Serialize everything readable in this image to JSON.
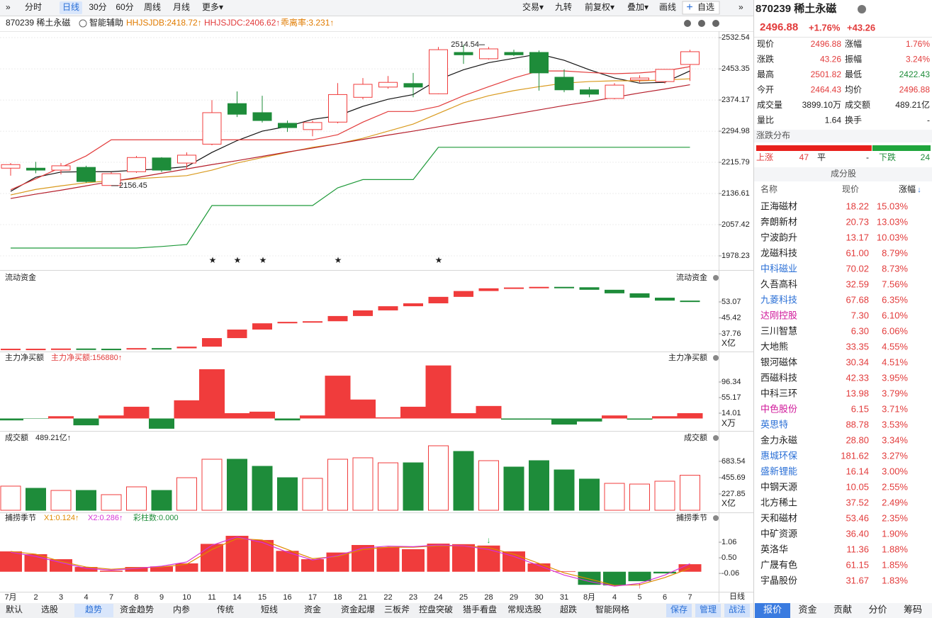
{
  "toolbar": {
    "left": [
      "分时",
      "日线",
      "30分",
      "60分",
      "周线",
      "月线",
      "更多▾"
    ],
    "right": [
      "交易▾",
      "九转",
      "前复权▾",
      "叠加▾",
      "画线",
      "自选"
    ]
  },
  "info": {
    "code_name": "870239 稀土永磁",
    "assist": "智能辅助",
    "jdb": "HHJSJDB:2418.72↑",
    "jdc": "HHJSJDC:2406.62↑",
    "bias": "乖离率:3.231↑"
  },
  "kline": {
    "dates": [
      "7月",
      "2",
      "3",
      "4",
      "7",
      "8",
      "9",
      "10",
      "11",
      "14",
      "15",
      "16",
      "17",
      "18",
      "21",
      "22",
      "23",
      "24",
      "25",
      "28",
      "29",
      "30",
      "31",
      "8月",
      "4",
      "5",
      "6",
      "7"
    ],
    "candles": [
      {
        "o": 2201,
        "h": 2214,
        "l": 2182,
        "c": 2210
      },
      {
        "o": 2201,
        "h": 2217,
        "l": 2188,
        "c": 2196
      },
      {
        "o": 2196,
        "h": 2214,
        "l": 2185,
        "c": 2207
      },
      {
        "o": 2203,
        "h": 2207,
        "l": 2164,
        "c": 2167
      },
      {
        "o": 2157,
        "h": 2191,
        "l": 2156.45,
        "c": 2187
      },
      {
        "o": 2192,
        "h": 2232,
        "l": 2189,
        "c": 2228
      },
      {
        "o": 2227,
        "h": 2229,
        "l": 2191,
        "c": 2196
      },
      {
        "o": 2214,
        "h": 2241,
        "l": 2200,
        "c": 2234
      },
      {
        "o": 2262,
        "h": 2374,
        "l": 2259,
        "c": 2342
      },
      {
        "o": 2365,
        "h": 2396,
        "l": 2331,
        "c": 2338
      },
      {
        "o": 2342,
        "h": 2385,
        "l": 2317,
        "c": 2322
      },
      {
        "o": 2315,
        "h": 2322,
        "l": 2293,
        "c": 2304
      },
      {
        "o": 2299,
        "h": 2322,
        "l": 2282,
        "c": 2317
      },
      {
        "o": 2318,
        "h": 2417,
        "l": 2315,
        "c": 2388
      },
      {
        "o": 2381,
        "h": 2430,
        "l": 2376,
        "c": 2414
      },
      {
        "o": 2407,
        "h": 2435,
        "l": 2403,
        "c": 2419
      },
      {
        "o": 2416,
        "h": 2443,
        "l": 2381,
        "c": 2407
      },
      {
        "o": 2390,
        "h": 2509,
        "l": 2389,
        "c": 2502
      },
      {
        "o": 2495,
        "h": 2514.54,
        "l": 2466,
        "c": 2489
      },
      {
        "o": 2479,
        "h": 2509,
        "l": 2477,
        "c": 2504
      },
      {
        "o": 2495,
        "h": 2502,
        "l": 2486,
        "c": 2489
      },
      {
        "o": 2495,
        "h": 2500,
        "l": 2398,
        "c": 2443
      },
      {
        "o": 2432,
        "h": 2452,
        "l": 2394,
        "c": 2400
      },
      {
        "o": 2400,
        "h": 2407,
        "l": 2381,
        "c": 2389
      },
      {
        "o": 2378,
        "h": 2417,
        "l": 2376,
        "c": 2412
      },
      {
        "o": 2425,
        "h": 2437,
        "l": 2419,
        "c": 2430
      },
      {
        "o": 2421,
        "h": 2453,
        "l": 2416,
        "c": 2452
      },
      {
        "o": 2464.43,
        "h": 2501.82,
        "l": 2422.43,
        "c": 2496.88
      }
    ],
    "lines": [
      {
        "color": "#111111",
        "values": [
          2142,
          2178,
          2191,
          2192,
          2192,
          2196,
          2199,
          2205,
          2241,
          2271,
          2295,
          2307,
          2325,
          2334,
          2358,
          2376,
          2388,
          2426,
          2451,
          2469,
          2480,
          2491,
          2475,
          2451,
          2430,
          2417,
          2419,
          2448
        ]
      },
      {
        "color": "#d99a1e",
        "values": [
          2133,
          2147,
          2156,
          2164,
          2169,
          2174,
          2178,
          2182,
          2196,
          2214,
          2228,
          2241,
          2254,
          2263,
          2277,
          2295,
          2313,
          2340,
          2367,
          2385,
          2398,
          2408,
          2417,
          2421,
          2423,
          2423,
          2425,
          2428
        ]
      },
      {
        "color": "#e23b3b",
        "values": [
          2146,
          2174,
          2203,
          2232,
          2273,
          2273,
          2273,
          2273,
          2273,
          2273,
          2273,
          2273,
          2273,
          2286,
          2318,
          2345,
          2345,
          2358,
          2385,
          2408,
          2430,
          2448,
          2448,
          2444,
          2441,
          2443,
          2448,
          2459
        ]
      },
      {
        "color": "#b51d2a",
        "values": [
          2124,
          2135,
          2145,
          2156,
          2167,
          2177,
          2188,
          2199,
          2210,
          2220,
          2231,
          2242,
          2252,
          2263,
          2274,
          2285,
          2295,
          2306,
          2317,
          2327,
          2338,
          2349,
          2360,
          2370,
          2381,
          2392,
          2402,
          2413
        ]
      },
      {
        "color": "#1f9a3a",
        "values": [
          1998,
          1998,
          1998,
          1998,
          1998,
          1998,
          2002,
          2007,
          2106,
          2106,
          2106,
          2106,
          2106,
          2151,
          2172,
          2172,
          2172,
          2254,
          2254,
          2254,
          2254,
          2254,
          2254,
          2254,
          2254,
          2254,
          2254,
          2254
        ]
      }
    ],
    "ylim": [
      1944,
      2549
    ],
    "yticks": [
      2532.54,
      2453.35,
      2374.17,
      2294.98,
      2215.79,
      2136.61,
      2057.42,
      1978.23
    ]
  },
  "liquid": {
    "title": "流动资金",
    "unit": "X亿",
    "values": [
      30.6,
      30.6,
      30.7,
      30.6,
      30.5,
      30.9,
      30.8,
      31.6,
      35.7,
      39.8,
      42.8,
      43.5,
      43.8,
      46.3,
      49.0,
      51.0,
      52.4,
      55.5,
      58.3,
      59.6,
      60.0,
      60.3,
      60.1,
      58.9,
      57.2,
      55.1,
      53.7,
      53.1
    ],
    "ylim": [
      29.6,
      67.7
    ],
    "yticks": [
      53.07,
      45.42,
      37.76
    ]
  },
  "net": {
    "title": "主力净买额",
    "header": "主力净买额:156880↑",
    "unit": "X万",
    "values": [
      -5,
      -1,
      6,
      -18,
      8,
      31,
      -27,
      48,
      130,
      14,
      18,
      -5,
      8,
      113,
      50,
      3,
      31,
      140,
      14,
      33,
      -3,
      -3,
      -16,
      -8,
      8,
      -3,
      6,
      14
    ],
    "ylim": [
      -30.9,
      174.9
    ],
    "yticks": [
      96.34,
      55.17,
      14.01
    ]
  },
  "turnover": {
    "title": "成交额",
    "header": "489.21亿↑",
    "unit": "X亿",
    "values": [
      337,
      307,
      277,
      277,
      218,
      327,
      277,
      455,
      713,
      713,
      614,
      455,
      446,
      713,
      733,
      663,
      663,
      901,
      822,
      693,
      604,
      693,
      564,
      436,
      376,
      366,
      406,
      489.21
    ],
    "ylim": [
      -20,
      1089
    ],
    "yticks": [
      683.54,
      455.69,
      227.85
    ]
  },
  "season": {
    "title": "捕捞季节",
    "x1_label": "X1:0.124↑",
    "x2_label": "X2:0.286↑",
    "bars_label": "彩柱数:0.000",
    "values": [
      0.73,
      0.63,
      0.45,
      0.17,
      0.04,
      0.17,
      0.19,
      0.3,
      1.0,
      1.29,
      1.14,
      0.75,
      0.45,
      0.69,
      0.96,
      0.88,
      0.81,
      1.01,
      0.99,
      0.94,
      0.73,
      0.3,
      0.02,
      -0.47,
      -0.49,
      -0.34,
      -0.06,
      0.27
    ],
    "x1": [
      0.73,
      0.63,
      0.37,
      0.17,
      0.09,
      0.14,
      0.17,
      0.27,
      0.8,
      1.19,
      1.14,
      0.8,
      0.47,
      0.55,
      0.8,
      0.88,
      0.88,
      0.93,
      0.93,
      0.86,
      0.63,
      0.3,
      -0.04,
      -0.26,
      -0.49,
      -0.47,
      -0.21,
      0.124
    ],
    "x2": [
      0.7,
      0.55,
      0.33,
      0.12,
      0.06,
      0.12,
      0.2,
      0.35,
      0.95,
      1.25,
      1.05,
      0.7,
      0.42,
      0.58,
      0.85,
      0.92,
      0.9,
      0.96,
      0.93,
      0.8,
      0.55,
      0.22,
      -0.12,
      -0.35,
      -0.52,
      -0.42,
      -0.12,
      0.286
    ],
    "x1_color": "#e08a00",
    "x2_color": "#d633d6",
    "ylim": [
      -0.72,
      2.08
    ],
    "yticks": [
      1.06,
      {
        "value": 0.5,
        "label": "0.50"
      },
      -0.06
    ]
  },
  "period_label": "日线",
  "bottom_tabs": [
    "默认",
    "选股",
    "趋势",
    "资金趋势",
    "内参",
    "传统",
    "短线",
    "资金",
    "资金起爆",
    "三板斧",
    "控盘突破",
    "猎手看盘",
    "常规选股",
    "超跌",
    "智能网格"
  ],
  "bottom_buttons": [
    "保存",
    "管理",
    "战法"
  ],
  "quote": {
    "title": "870239 稀土永磁",
    "price": "2496.88",
    "pct": "+1.76%",
    "chg": "+43.26",
    "rows": [
      [
        "现价",
        "2496.88",
        "涨幅",
        "1.76%"
      ],
      [
        "涨跌",
        "43.26",
        "振幅",
        "3.24%"
      ],
      [
        "最高",
        "2501.82",
        "最低",
        "2422.43"
      ],
      [
        "今开",
        "2464.43",
        "均价",
        "2496.88"
      ],
      [
        "成交量",
        "3899.10万",
        "成交额",
        "489.21亿"
      ],
      [
        "量比",
        "1.64",
        "换手",
        "-"
      ]
    ]
  },
  "dist": {
    "title": "涨跌分布",
    "up_label": "上涨",
    "up": 47,
    "flat_label": "平",
    "flat": "-",
    "down_label": "下跌",
    "down": 24
  },
  "constituents": {
    "title": "成分股",
    "headers": [
      "名称",
      "现价",
      "涨幅"
    ],
    "rows": [
      {
        "name": "正海磁材",
        "price": "18.22",
        "change": "15.03%"
      },
      {
        "name": "奔朗新材",
        "price": "20.73",
        "change": "13.03%"
      },
      {
        "name": "宁波韵升",
        "price": "13.17",
        "change": "10.03%"
      },
      {
        "name": "龙磁科技",
        "price": "61.00",
        "change": "8.79%"
      },
      {
        "name": "中科磁业",
        "price": "70.02",
        "change": "8.73%",
        "name_color": "#2a6fd6"
      },
      {
        "name": "久吾高科",
        "price": "32.59",
        "change": "7.56%"
      },
      {
        "name": "九菱科技",
        "price": "67.68",
        "change": "6.35%",
        "name_color": "#2a6fd6"
      },
      {
        "name": "达刚控股",
        "price": "7.30",
        "change": "6.10%",
        "name_color": "#d0189a"
      },
      {
        "name": "三川智慧",
        "price": "6.30",
        "change": "6.06%"
      },
      {
        "name": "大地熊",
        "price": "33.35",
        "change": "4.55%"
      },
      {
        "name": "银河磁体",
        "price": "30.34",
        "change": "4.51%"
      },
      {
        "name": "西磁科技",
        "price": "42.33",
        "change": "3.95%"
      },
      {
        "name": "中科三环",
        "price": "13.98",
        "change": "3.79%"
      },
      {
        "name": "中色股份",
        "price": "6.15",
        "change": "3.71%",
        "name_color": "#d0189a"
      },
      {
        "name": "英思特",
        "price": "88.78",
        "change": "3.53%",
        "name_color": "#2a6fd6"
      },
      {
        "name": "金力永磁",
        "price": "28.80",
        "change": "3.34%"
      },
      {
        "name": "惠城环保",
        "price": "181.62",
        "change": "3.27%",
        "name_color": "#2a6fd6"
      },
      {
        "name": "盛新锂能",
        "price": "16.14",
        "change": "3.00%",
        "name_color": "#2a6fd6"
      },
      {
        "name": "中钢天源",
        "price": "10.05",
        "change": "2.55%"
      },
      {
        "name": "北方稀土",
        "price": "37.52",
        "change": "2.49%"
      },
      {
        "name": "天和磁材",
        "price": "53.46",
        "change": "2.35%"
      },
      {
        "name": "中矿资源",
        "price": "36.40",
        "change": "1.90%"
      },
      {
        "name": "英洛华",
        "price": "11.36",
        "change": "1.88%"
      },
      {
        "name": "广晟有色",
        "price": "61.15",
        "change": "1.85%"
      },
      {
        "name": "宇晶股份",
        "price": "31.67",
        "change": "1.83%"
      }
    ]
  },
  "right_tabs": [
    "报价",
    "资金",
    "贡献",
    "分价",
    "筹码"
  ]
}
